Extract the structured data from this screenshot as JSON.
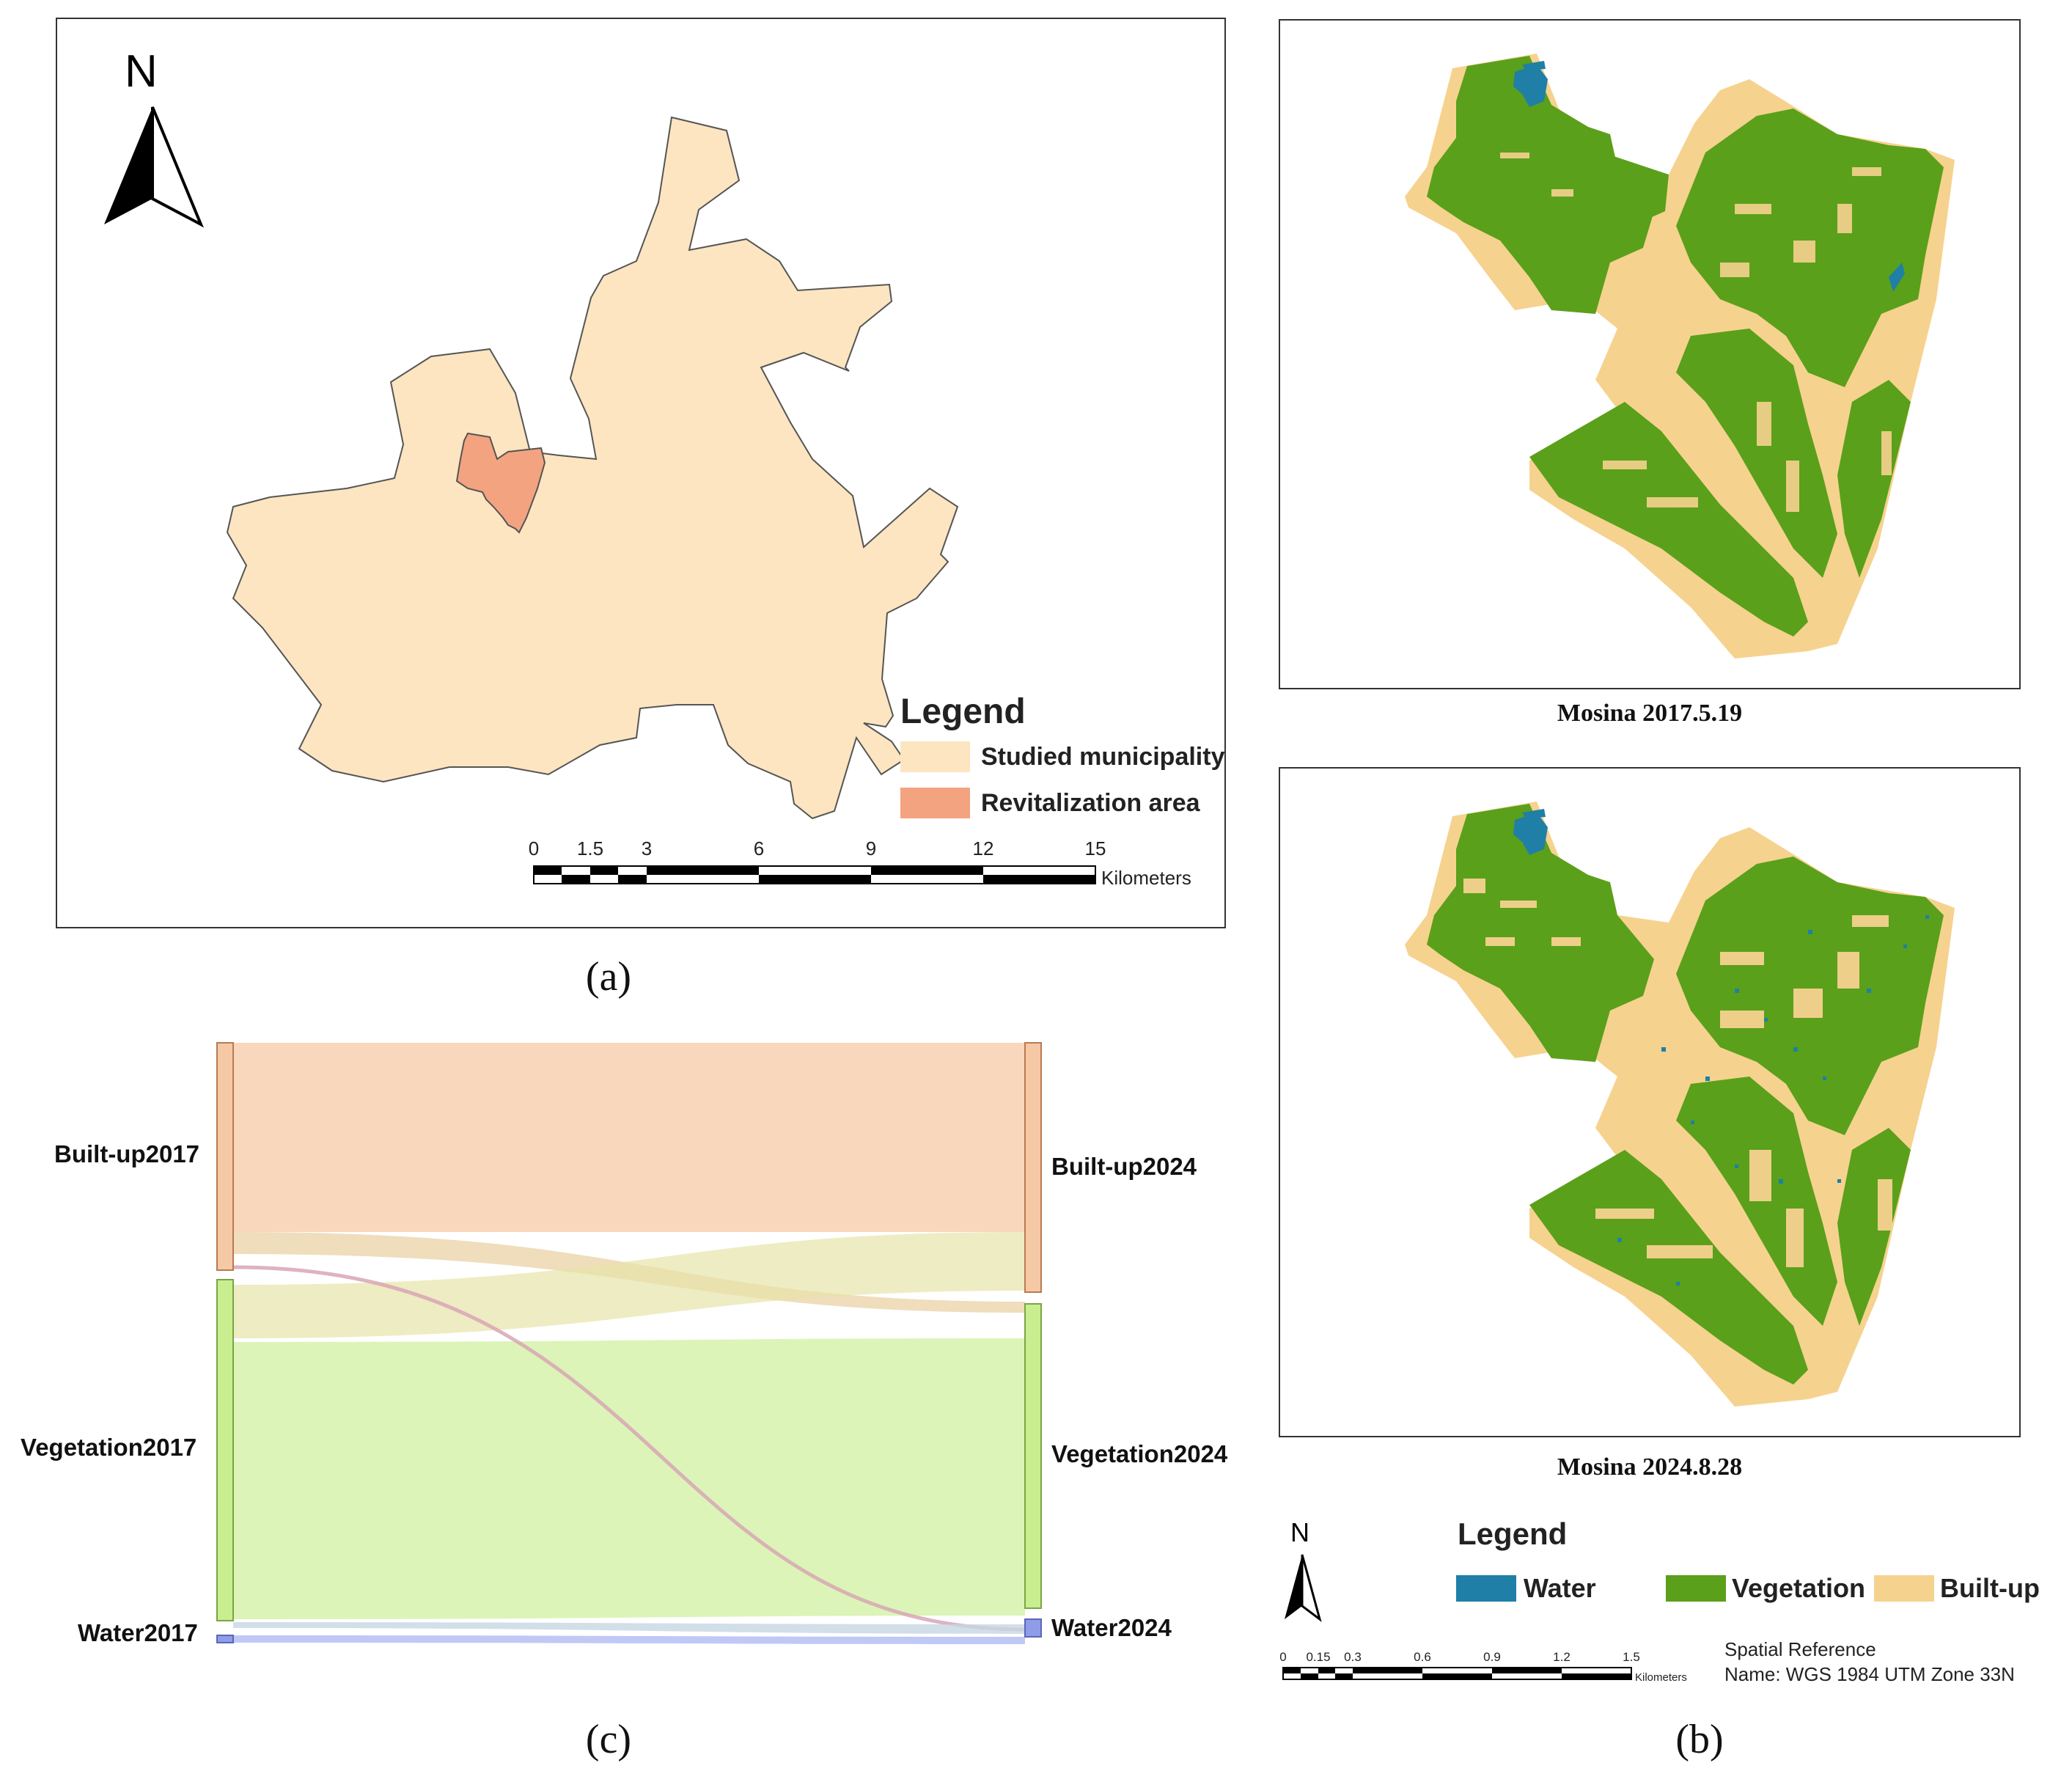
{
  "panel_a": {
    "caption": "(a)",
    "north": "N",
    "legend_title": "Legend",
    "legend_items": [
      {
        "label": "Studied municipality",
        "color": "#fce5c0"
      },
      {
        "label": "Revitalization area",
        "color": "#f4a380"
      }
    ],
    "scale_ticks": [
      "0",
      "1.5",
      "3",
      "6",
      "9",
      "12",
      "15"
    ],
    "scale_unit": "Kilometers"
  },
  "panel_b": {
    "caption": "(b)",
    "map1_title": "Mosina 2017.5.19",
    "map2_title": "Mosina 2024.8.28",
    "north": "N",
    "legend_title": "Legend",
    "legend_items": [
      {
        "label": "Water",
        "color": "#1f7fa6"
      },
      {
        "label": "Vegetation",
        "color": "#5aa01a"
      },
      {
        "label": "Built-up",
        "color": "#f6d28f"
      }
    ],
    "scale_ticks": [
      "0",
      "0.15",
      "0.3",
      "0.6",
      "0.9",
      "1.2",
      "1.5"
    ],
    "scale_unit": "Kilometers",
    "spatial_ref_line1": "Spatial Reference",
    "spatial_ref_line2": "Name: WGS 1984 UTM Zone 33N"
  },
  "panel_c": {
    "caption": "(c)",
    "left_nodes": [
      "Built-up2017",
      "Vegetation2017",
      "Water2017"
    ],
    "right_nodes": [
      "Built-up2024",
      "Vegetation2024",
      "Water2024"
    ],
    "colors": {
      "built": "#f6c9a6",
      "vegetation": "#d8f3b0",
      "water": "#b9c3f4"
    }
  }
}
